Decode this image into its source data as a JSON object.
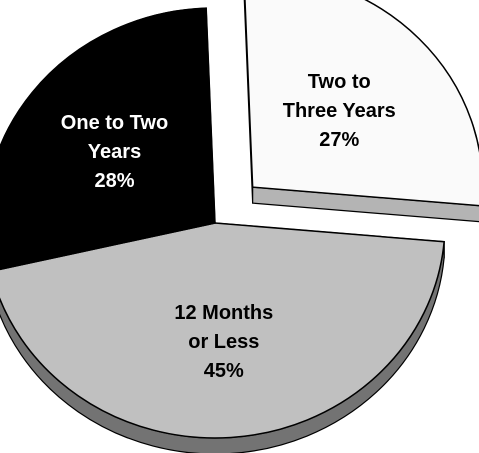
{
  "chart_data": {
    "type": "pie",
    "exploded_slice": "Two to Three Years",
    "slices": [
      {
        "name": "12 Months or Less",
        "label_lines": [
          "12 Months",
          "or Less"
        ],
        "value": 45,
        "value_label": "45%",
        "color": "#c0c0c0",
        "text_color": "#000000"
      },
      {
        "name": "One to Two Years",
        "label_lines": [
          "One to Two",
          "Years"
        ],
        "value": 28,
        "value_label": "28%",
        "color": "#000000",
        "text_color": "#ffffff"
      },
      {
        "name": "Two to Three Years",
        "label_lines": [
          "Two to",
          "Three Years"
        ],
        "value": 27,
        "value_label": "27%",
        "color": "#fafafa",
        "text_color": "#000000"
      }
    ]
  }
}
